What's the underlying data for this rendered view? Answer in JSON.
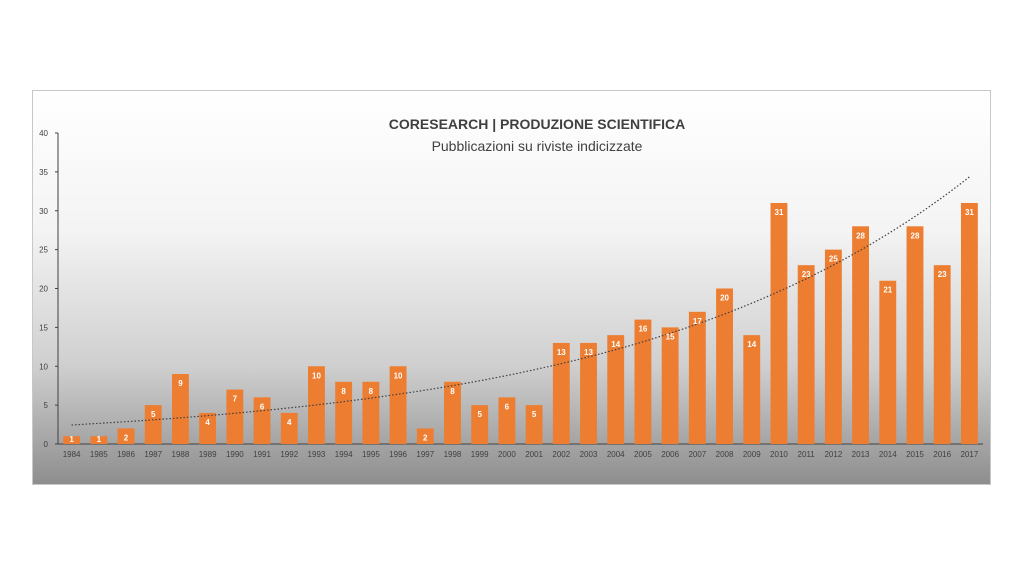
{
  "chart_data": {
    "type": "bar",
    "title": "CORESEARCH | PRODUZIONE SCIENTIFICA",
    "subtitle": "Pubblicazioni su riviste indicizzate",
    "categories": [
      "1984",
      "1985",
      "1986",
      "1987",
      "1988",
      "1989",
      "1990",
      "1991",
      "1992",
      "1993",
      "1994",
      "1995",
      "1996",
      "1997",
      "1998",
      "1999",
      "2000",
      "2001",
      "2002",
      "2003",
      "2004",
      "2005",
      "2006",
      "2007",
      "2008",
      "2009",
      "2010",
      "2011",
      "2012",
      "2013",
      "2014",
      "2015",
      "2016",
      "2017"
    ],
    "values": [
      1,
      1,
      2,
      5,
      9,
      4,
      7,
      6,
      4,
      10,
      8,
      8,
      10,
      2,
      8,
      5,
      6,
      5,
      13,
      13,
      14,
      16,
      15,
      17,
      20,
      14,
      31,
      23,
      25,
      28,
      21,
      28,
      23,
      31
    ],
    "ylim": [
      0,
      40
    ],
    "yticks": [
      0,
      5,
      10,
      15,
      20,
      25,
      30,
      35,
      40
    ],
    "bar_color": "#ed7d31",
    "trendline": {
      "type": "exponential",
      "style": "dotted",
      "color": "#404040"
    },
    "grid": false,
    "legend": "none"
  }
}
